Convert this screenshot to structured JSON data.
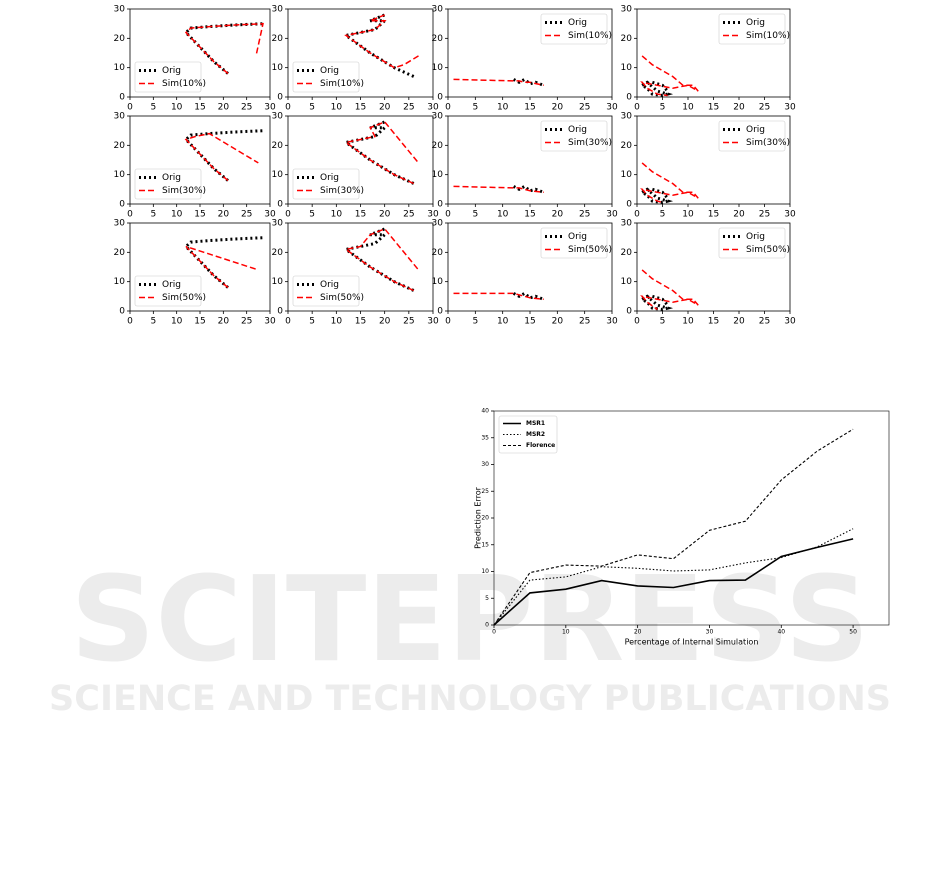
{
  "watermark": {
    "title": "SCITEPRESS",
    "subtitle": "SCIENCE AND TECHNOLOGY PUBLICATIONS"
  },
  "chart_data": [
    {
      "type": "line",
      "legend": "lower left",
      "xlim": [
        0,
        30
      ],
      "ylim": [
        0,
        30
      ],
      "xticks": [
        0,
        5,
        10,
        15,
        20,
        25,
        30
      ],
      "yticks": [
        0,
        10,
        20,
        30
      ],
      "series": [
        {
          "name": "Orig",
          "color": "#000000",
          "style": "dotted",
          "x": [
            21,
            18,
            15,
            12,
            13,
            17,
            22,
            28.5
          ],
          "values": [
            8,
            12,
            17,
            22,
            23.5,
            24,
            24.5,
            25
          ]
        },
        {
          "name": "Sim(10%)",
          "color": "#ff0000",
          "style": "dashed",
          "x": [
            21,
            18,
            15,
            12,
            13,
            17,
            22,
            28.5,
            27
          ],
          "values": [
            8,
            12,
            17,
            22,
            23.5,
            24,
            24.5,
            25,
            14
          ]
        }
      ]
    },
    {
      "type": "line",
      "legend": "lower left",
      "xlim": [
        0,
        30
      ],
      "ylim": [
        0,
        30
      ],
      "xticks": [
        0,
        5,
        10,
        15,
        20,
        25,
        30
      ],
      "yticks": [
        0,
        10,
        20,
        30
      ],
      "series": [
        {
          "name": "Orig",
          "color": "#000000",
          "style": "dotted",
          "x": [
            26,
            22,
            17,
            12,
            15,
            18,
            20,
            17,
            20
          ],
          "values": [
            7,
            10,
            15,
            21,
            22,
            23,
            26,
            26,
            28
          ]
        },
        {
          "name": "Sim(10%)",
          "color": "#ff0000",
          "style": "dashed",
          "x": [
            27,
            24,
            22,
            17,
            12,
            15,
            18,
            20,
            17,
            20
          ],
          "values": [
            14,
            11,
            10,
            15,
            21,
            22,
            23,
            26,
            26,
            28
          ]
        }
      ]
    },
    {
      "type": "line",
      "legend": "upper right",
      "xlim": [
        0,
        30
      ],
      "ylim": [
        0,
        30
      ],
      "xticks": [
        0,
        5,
        10,
        15,
        20,
        25,
        30
      ],
      "yticks": [
        0,
        10,
        20,
        30
      ],
      "series": [
        {
          "name": "Orig",
          "color": "#000000",
          "style": "dotted",
          "x": [
            12,
            13,
            14,
            15,
            16,
            17.5
          ],
          "values": [
            6,
            5,
            6,
            4.5,
            5,
            4
          ]
        },
        {
          "name": "Sim(10%)",
          "color": "#ff0000",
          "style": "dashed",
          "x": [
            1,
            12,
            13,
            14,
            15,
            17.5
          ],
          "values": [
            6,
            5.5,
            5.5,
            5,
            5,
            4
          ]
        }
      ]
    },
    {
      "type": "line",
      "legend": "upper right",
      "xlim": [
        0,
        30
      ],
      "ylim": [
        0,
        30
      ],
      "xticks": [
        0,
        5,
        10,
        15,
        20,
        25,
        30
      ],
      "yticks": [
        0,
        10,
        20,
        30
      ],
      "series": [
        {
          "name": "Orig",
          "color": "#000000",
          "style": "dotted",
          "x": [
            1,
            2,
            4,
            6,
            5,
            3,
            2,
            1,
            3,
            5,
            6
          ],
          "values": [
            4,
            5,
            2,
            1,
            0.5,
            1,
            3,
            4,
            5,
            4,
            2
          ]
        },
        {
          "name": "Sim(10%)",
          "color": "#ff0000",
          "style": "dashed",
          "x": [
            1,
            3,
            7,
            9,
            11,
            12,
            10,
            7,
            4,
            1,
            2,
            4,
            6
          ],
          "values": [
            14,
            11,
            7,
            4,
            4,
            2,
            4,
            3,
            4,
            5,
            3,
            1,
            0.5
          ]
        }
      ]
    },
    {
      "type": "line",
      "legend": "lower left",
      "xlim": [
        0,
        30
      ],
      "ylim": [
        0,
        30
      ],
      "xticks": [
        0,
        5,
        10,
        15,
        20,
        25,
        30
      ],
      "yticks": [
        0,
        10,
        20,
        30
      ],
      "series": [
        {
          "name": "Orig",
          "color": "#000000",
          "style": "dotted",
          "x": [
            21,
            18,
            15,
            12,
            13,
            17,
            22,
            28.5
          ],
          "values": [
            8,
            12,
            17,
            22,
            23.5,
            24,
            24.5,
            25
          ]
        },
        {
          "name": "Sim(30%)",
          "color": "#ff0000",
          "style": "dashed",
          "x": [
            21,
            18,
            15,
            12,
            14,
            17,
            27.5
          ],
          "values": [
            8,
            12,
            17,
            22,
            23,
            24,
            14
          ]
        }
      ]
    },
    {
      "type": "line",
      "legend": "lower left",
      "xlim": [
        0,
        30
      ],
      "ylim": [
        0,
        30
      ],
      "xticks": [
        0,
        5,
        10,
        15,
        20,
        25,
        30
      ],
      "yticks": [
        0,
        10,
        20,
        30
      ],
      "series": [
        {
          "name": "Orig",
          "color": "#000000",
          "style": "dotted",
          "x": [
            26,
            22,
            17,
            12,
            15,
            18,
            20,
            17,
            20
          ],
          "values": [
            7,
            10,
            15,
            21,
            22,
            23,
            26,
            26,
            28
          ]
        },
        {
          "name": "Sim(30%)",
          "color": "#ff0000",
          "style": "dashed",
          "x": [
            26,
            22,
            17,
            12,
            15,
            18,
            17,
            20,
            27
          ],
          "values": [
            7,
            10,
            15,
            21,
            22,
            23,
            26,
            28,
            14
          ]
        }
      ]
    },
    {
      "type": "line",
      "legend": "upper right",
      "xlim": [
        0,
        30
      ],
      "ylim": [
        0,
        30
      ],
      "xticks": [
        0,
        5,
        10,
        15,
        20,
        25,
        30
      ],
      "yticks": [
        0,
        10,
        20,
        30
      ],
      "series": [
        {
          "name": "Orig",
          "color": "#000000",
          "style": "dotted",
          "x": [
            12,
            13,
            14,
            15,
            16,
            17.5
          ],
          "values": [
            6,
            5,
            6,
            4.5,
            5,
            4
          ]
        },
        {
          "name": "Sim(30%)",
          "color": "#ff0000",
          "style": "dashed",
          "x": [
            1,
            12,
            13,
            14,
            15,
            17.5
          ],
          "values": [
            6,
            5.5,
            5.5,
            5,
            4.5,
            4
          ]
        }
      ]
    },
    {
      "type": "line",
      "legend": "upper right",
      "xlim": [
        0,
        30
      ],
      "ylim": [
        0,
        30
      ],
      "xticks": [
        0,
        5,
        10,
        15,
        20,
        25,
        30
      ],
      "yticks": [
        0,
        10,
        20,
        30
      ],
      "series": [
        {
          "name": "Orig",
          "color": "#000000",
          "style": "dotted",
          "x": [
            1,
            2,
            4,
            6,
            5,
            3,
            2,
            1,
            3,
            5,
            6
          ],
          "values": [
            4,
            5,
            2,
            1,
            0.5,
            1,
            3,
            4,
            5,
            4,
            2
          ]
        },
        {
          "name": "Sim(30%)",
          "color": "#ff0000",
          "style": "dashed",
          "x": [
            1,
            3,
            7,
            9,
            11,
            12,
            10,
            7,
            4,
            1,
            2,
            4,
            5
          ],
          "values": [
            14,
            11,
            7,
            4,
            4,
            2,
            4,
            3,
            4,
            5,
            3,
            1,
            0.5
          ]
        }
      ]
    },
    {
      "type": "line",
      "legend": "lower left",
      "xlim": [
        0,
        30
      ],
      "ylim": [
        0,
        30
      ],
      "xticks": [
        0,
        5,
        10,
        15,
        20,
        25,
        30
      ],
      "yticks": [
        0,
        10,
        20,
        30
      ],
      "series": [
        {
          "name": "Orig",
          "color": "#000000",
          "style": "dotted",
          "x": [
            21,
            18,
            15,
            12,
            13,
            17,
            22,
            28.5
          ],
          "values": [
            8,
            12,
            17,
            22,
            23.5,
            24,
            24.5,
            25
          ]
        },
        {
          "name": "Sim(50%)",
          "color": "#ff0000",
          "style": "dashed",
          "x": [
            21,
            18,
            15,
            12,
            27.5
          ],
          "values": [
            8,
            12,
            17,
            22,
            14
          ]
        }
      ]
    },
    {
      "type": "line",
      "legend": "lower left",
      "xlim": [
        0,
        30
      ],
      "ylim": [
        0,
        30
      ],
      "xticks": [
        0,
        5,
        10,
        15,
        20,
        25,
        30
      ],
      "yticks": [
        0,
        10,
        20,
        30
      ],
      "series": [
        {
          "name": "Orig",
          "color": "#000000",
          "style": "dotted",
          "x": [
            26,
            22,
            17,
            12,
            15,
            18,
            20,
            17,
            20
          ],
          "values": [
            7,
            10,
            15,
            21,
            22,
            23,
            26,
            26,
            28
          ]
        },
        {
          "name": "Sim(50%)",
          "color": "#ff0000",
          "style": "dashed",
          "x": [
            26,
            22,
            17,
            12,
            15,
            17,
            20,
            27
          ],
          "values": [
            7,
            10,
            15,
            21,
            22,
            26,
            28,
            14
          ]
        }
      ]
    },
    {
      "type": "line",
      "legend": "upper right",
      "xlim": [
        0,
        30
      ],
      "ylim": [
        0,
        30
      ],
      "xticks": [
        0,
        5,
        10,
        15,
        20,
        25,
        30
      ],
      "yticks": [
        0,
        10,
        20,
        30
      ],
      "series": [
        {
          "name": "Orig",
          "color": "#000000",
          "style": "dotted",
          "x": [
            12,
            13,
            14,
            15,
            16,
            17.5
          ],
          "values": [
            6,
            5,
            6,
            4.5,
            5,
            4
          ]
        },
        {
          "name": "Sim(50%)",
          "color": "#ff0000",
          "style": "dashed",
          "x": [
            1,
            12,
            14,
            15,
            17.5
          ],
          "values": [
            6,
            6,
            5,
            4.5,
            4
          ]
        }
      ]
    },
    {
      "type": "line",
      "legend": "upper right",
      "xlim": [
        0,
        30
      ],
      "ylim": [
        0,
        30
      ],
      "xticks": [
        0,
        5,
        10,
        15,
        20,
        25,
        30
      ],
      "yticks": [
        0,
        10,
        20,
        30
      ],
      "series": [
        {
          "name": "Orig",
          "color": "#000000",
          "style": "dotted",
          "x": [
            1,
            2,
            4,
            6,
            5,
            3,
            2,
            1,
            3,
            5,
            6
          ],
          "values": [
            4,
            5,
            2,
            1,
            0.5,
            1,
            3,
            4,
            5,
            4,
            2
          ]
        },
        {
          "name": "Sim(50%)",
          "color": "#ff0000",
          "style": "dashed",
          "x": [
            1,
            3,
            7,
            9,
            11,
            12,
            10,
            7,
            1,
            2,
            4
          ],
          "values": [
            14,
            11,
            7,
            4,
            4,
            2,
            4,
            3,
            5,
            3,
            0.5
          ]
        }
      ]
    },
    {
      "type": "line",
      "legend": "upper left",
      "x_label": "Percentage of Internal Simulation",
      "y_label": "Prediction Error",
      "xlim": [
        0,
        55
      ],
      "ylim": [
        0,
        40
      ],
      "xticks": [
        0,
        10,
        20,
        30,
        40,
        50
      ],
      "yticks": [
        0,
        5,
        10,
        15,
        20,
        25,
        30,
        35,
        40
      ],
      "series": [
        {
          "name": "MSR1",
          "color": "#000000",
          "style": "solid",
          "x": [
            0,
            5,
            10,
            15,
            20,
            25,
            30,
            35,
            40,
            45,
            50
          ],
          "values": [
            0,
            6,
            6.7,
            8.3,
            7.3,
            7,
            8.3,
            8.4,
            12.8,
            14.5,
            16.1
          ]
        },
        {
          "name": "MSR2",
          "color": "#000000",
          "style": "dotted",
          "x": [
            0,
            5,
            10,
            15,
            20,
            25,
            30,
            35,
            40,
            45,
            50
          ],
          "values": [
            0,
            8.4,
            9,
            10.9,
            10.6,
            10.1,
            10.3,
            11.6,
            12.6,
            14.6,
            18
          ]
        },
        {
          "name": "Florence",
          "color": "#000000",
          "style": "dashed",
          "x": [
            0,
            5,
            10,
            15,
            20,
            25,
            30,
            35,
            40,
            45,
            50
          ],
          "values": [
            0,
            9.8,
            11.2,
            11,
            13.1,
            12.4,
            17.7,
            19.4,
            27.1,
            32.5,
            36.6
          ]
        }
      ]
    }
  ]
}
